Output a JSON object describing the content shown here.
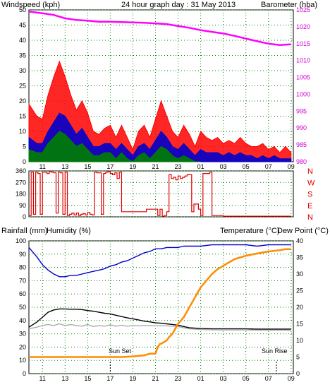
{
  "colors": {
    "wind_axis": "#e00000",
    "baro_axis": "#d000d0",
    "title": "#0000c0",
    "wind_max": "#ff0000",
    "wind_avg": "#0000cc",
    "wind_min": "#008000",
    "baro": "#ff00ff",
    "direction": "#dd0000",
    "rain": "#ff8c00",
    "humidity": "#0000cc",
    "temperature": "#000000",
    "dewpoint": "#aaaaaa",
    "rain_axis": "#e08000",
    "humidity_axis": "#0000cc",
    "dewpoint_axis": "#aaaaaa",
    "grid": "#008000"
  },
  "header": {
    "wind_label": "Windspeed (kph)",
    "title": "24 hour graph day : 31 May 2013",
    "baro_label": "Barometer (hba)"
  },
  "bottom_header": {
    "rain_label": "Rainfall (mm)",
    "humidity_label": "Humidity (%)",
    "temp_label": "Temperature (°C)",
    "dew_label": "Dew Point (°C)"
  },
  "direction_labels": [
    "N",
    "W",
    "S",
    "E",
    "N"
  ],
  "annotations": {
    "sunset": "Sun Set",
    "sunrise": "Sun Rise"
  },
  "chart_data": [
    {
      "type": "line",
      "title": "24 hour graph day : 31 May 2013",
      "x_ticks": [
        "11",
        "13",
        "15",
        "17",
        "19",
        "21",
        "23",
        "01",
        "03",
        "05",
        "07",
        "09"
      ],
      "y_left": {
        "label": "Windspeed (kph)",
        "ylim": [
          0,
          50
        ],
        "ticks": [
          0,
          5,
          10,
          15,
          20,
          25,
          30,
          35,
          40,
          45,
          50
        ]
      },
      "y_right": {
        "label": "Barometer (hba)",
        "ylim": [
          980,
          1025
        ],
        "ticks": [
          980,
          985,
          990,
          995,
          1000,
          1005,
          1010,
          1015,
          1020,
          1025
        ]
      },
      "series": [
        {
          "name": "Windspeed (kph)",
          "kind": "gust",
          "x": [
            9.8,
            10.5,
            11,
            11.5,
            12,
            12.5,
            13,
            13.5,
            14,
            14.5,
            15,
            15.5,
            16,
            16.5,
            17,
            17.5,
            18,
            18.5,
            19,
            19.5,
            20,
            20.5,
            21,
            21.5,
            22,
            22.5,
            23,
            23.5,
            24,
            24.5,
            25,
            25.5,
            26,
            26.5,
            27,
            27.5,
            28,
            28.5,
            29,
            29.5,
            30,
            30.5,
            31,
            31.5,
            32,
            32.5,
            33
          ],
          "values": [
            19,
            15,
            14,
            22,
            28,
            33,
            28,
            22,
            17,
            20,
            16,
            10,
            9,
            11,
            12,
            8,
            12,
            8,
            4,
            10,
            12,
            8,
            14,
            20,
            15,
            10,
            8,
            12,
            9,
            5,
            10,
            8,
            7,
            8,
            6,
            7,
            6,
            8,
            6,
            5,
            5,
            6,
            4,
            5,
            3,
            5,
            3
          ]
        },
        {
          "name": "Average",
          "kind": "average",
          "x": [
            9.8,
            10.5,
            11,
            11.5,
            12,
            12.5,
            13,
            13.5,
            14,
            14.5,
            15,
            15.5,
            16,
            16.5,
            17,
            17.5,
            18,
            18.5,
            19,
            19.5,
            20,
            20.5,
            21,
            21.5,
            22,
            22.5,
            23,
            23.5,
            24,
            24.5,
            25,
            25.5,
            26,
            26.5,
            27,
            27.5,
            28,
            28.5,
            29,
            29.5,
            30,
            30.5,
            31,
            31.5,
            32,
            32.5,
            33
          ],
          "values": [
            8,
            6,
            6,
            10,
            13,
            16,
            15,
            12,
            9,
            11,
            8,
            5,
            5,
            6,
            6,
            4,
            6,
            4,
            2,
            5,
            6,
            4,
            7,
            10,
            8,
            5,
            4,
            6,
            4,
            2,
            4,
            3,
            3,
            3,
            2,
            3,
            2,
            3,
            2,
            2,
            1,
            2,
            1,
            2,
            1,
            1,
            1
          ]
        },
        {
          "name": "Minimum",
          "kind": "lull",
          "x": [
            9.8,
            10.5,
            11,
            11.5,
            12,
            12.5,
            13,
            13.5,
            14,
            14.5,
            15,
            15.5,
            16,
            16.5,
            17,
            17.5,
            18,
            18.5,
            19,
            19.5,
            20,
            20.5,
            21,
            21.5,
            22,
            22.5,
            23,
            23.5,
            24,
            24.5,
            25
          ],
          "values": [
            4,
            3,
            3,
            6,
            8,
            10,
            9,
            7,
            5,
            6,
            4,
            2,
            2,
            3,
            3,
            1,
            3,
            1,
            0,
            2,
            3,
            1,
            3,
            5,
            4,
            2,
            1,
            2,
            1,
            0,
            0
          ]
        },
        {
          "name": "Barometer (hba)",
          "kind": "pressure",
          "axis": "right",
          "x": [
            9.8,
            11,
            12,
            13,
            14,
            15,
            16,
            17,
            18,
            19,
            20,
            21,
            22,
            23,
            24,
            25,
            26,
            27,
            28,
            29,
            30,
            31,
            32,
            33
          ],
          "values": [
            1024.5,
            1024,
            1023.5,
            1022.5,
            1022,
            1021.8,
            1021.5,
            1021.5,
            1021.4,
            1021.3,
            1021.2,
            1021,
            1020.8,
            1020.2,
            1019.7,
            1019,
            1018.5,
            1018,
            1017.3,
            1016.5,
            1015.7,
            1015,
            1014.6,
            1014.8
          ]
        }
      ]
    },
    {
      "type": "line",
      "title": "",
      "x_ticks": [
        "11",
        "13",
        "15",
        "17",
        "19",
        "21",
        "23",
        "01",
        "03",
        "05",
        "07",
        "09"
      ],
      "y_left": {
        "ylim": [
          0,
          360
        ],
        "ticks": [
          0,
          90,
          180,
          270,
          360
        ]
      },
      "y_right_labels": [
        "N",
        "W",
        "S",
        "E",
        "N"
      ],
      "series": [
        {
          "name": "Direction",
          "x": [
            9.8,
            10.0,
            10.2,
            10.4,
            10.6,
            10.8,
            11.0,
            11.2,
            11.4,
            11.6,
            11.8,
            12.0,
            12.2,
            12.4,
            12.6,
            12.8,
            13.0,
            13.2,
            13.4,
            13.6,
            13.8,
            14.0,
            14.2,
            14.4,
            14.6,
            14.8,
            15.0,
            15.2,
            15.4,
            15.6,
            15.8,
            16.0,
            16.2,
            16.4,
            16.6,
            16.8,
            17.0,
            17.2,
            17.4,
            17.6,
            17.8,
            18.0,
            19.0,
            20.0,
            20.2,
            21.0,
            21.2,
            21.4,
            21.6,
            21.8,
            22.0,
            22.2,
            22.4,
            22.6,
            22.8,
            23.0,
            23.2,
            23.4,
            23.6,
            23.8,
            24.0,
            24.2,
            24.4,
            24.6,
            24.8,
            25.0,
            25.2,
            25.4,
            25.6,
            25.8,
            26.0,
            27.0,
            28.0,
            29.0,
            30.0,
            31.0,
            32.0,
            33.0
          ],
          "values": [
            10,
            350,
            20,
            350,
            340,
            20,
            350,
            350,
            340,
            355,
            350,
            345,
            30,
            350,
            345,
            20,
            350,
            10,
            20,
            30,
            15,
            30,
            10,
            20,
            25,
            15,
            35,
            20,
            15,
            350,
            345,
            345,
            20,
            340,
            350,
            355,
            340,
            330,
            345,
            300,
            350,
            40,
            40,
            40,
            60,
            60,
            10,
            60,
            5,
            10,
            40,
            330,
            300,
            310,
            290,
            320,
            300,
            310,
            320,
            330,
            330,
            40,
            100,
            100,
            60,
            10,
            340,
            340,
            340,
            350,
            10,
            5,
            5,
            5,
            5,
            5,
            5,
            5
          ]
        }
      ]
    },
    {
      "type": "line",
      "title": "",
      "x_ticks": [
        "11",
        "13",
        "15",
        "17",
        "19",
        "21",
        "23",
        "01",
        "03",
        "05",
        "07",
        "09"
      ],
      "y_left": {
        "label": "Rainfall (mm) Humidity (%)",
        "ylim": [
          0,
          100
        ],
        "ticks": [
          0,
          10,
          20,
          30,
          40,
          50,
          60,
          70,
          80,
          90,
          100
        ]
      },
      "y_right": {
        "label": "Temperature (°C)",
        "ylim": [
          0,
          40
        ],
        "ticks": [
          0,
          5,
          10,
          15,
          20,
          25,
          30,
          35,
          40
        ]
      },
      "series": [
        {
          "name": "Humidity (%)",
          "axis": "left",
          "x": [
            9.8,
            10.5,
            11,
            11.5,
            12,
            12.5,
            13,
            13.5,
            14,
            14.5,
            15,
            15.5,
            16,
            16.5,
            17,
            17.5,
            18,
            18.5,
            19,
            19.5,
            20,
            20.5,
            21,
            21.5,
            22,
            22.5,
            23,
            23.5,
            24,
            25,
            26,
            27,
            28,
            29,
            30,
            31,
            32,
            33
          ],
          "values": [
            95,
            88,
            82,
            78,
            75,
            73,
            73,
            74,
            74,
            75,
            76,
            77,
            78,
            79,
            81,
            82,
            84,
            85,
            87,
            89,
            91,
            92,
            94,
            94,
            95,
            95,
            95,
            96,
            96,
            96,
            97,
            97,
            97,
            97,
            96,
            97,
            97,
            97
          ]
        },
        {
          "name": "Temperature (°C)",
          "axis": "right",
          "x": [
            9.8,
            10.5,
            11,
            11.5,
            12,
            12.5,
            13,
            13.5,
            14,
            14.5,
            15,
            15.5,
            16,
            16.5,
            17,
            17.5,
            18,
            18.5,
            19,
            19.5,
            20,
            20.5,
            21,
            21.5,
            22,
            22.5,
            23,
            23.5,
            24,
            25,
            26,
            27,
            28,
            29,
            30,
            31,
            32,
            33
          ],
          "values": [
            14,
            15.5,
            17,
            18.5,
            19.2,
            19.5,
            19.5,
            19.4,
            19.4,
            19.3,
            19,
            18.8,
            18.5,
            18.2,
            18,
            17.6,
            17.2,
            16.8,
            16.5,
            16.2,
            15.8,
            15.6,
            15.3,
            15.2,
            15,
            14.8,
            14.6,
            14.2,
            13.8,
            13.6,
            13.5,
            13.5,
            13.5,
            13.5,
            13.4,
            13.4,
            13.4,
            13.4
          ]
        },
        {
          "name": "Dew Point (°C)",
          "axis": "right",
          "x": [
            9.8,
            10.5,
            11,
            11.5,
            12,
            12.5,
            13,
            13.5,
            14,
            14.5,
            15,
            15.5,
            16,
            16.5,
            17,
            17.5,
            18,
            18.5,
            19,
            19.5,
            20,
            20.5,
            21,
            21.5,
            22,
            22.5,
            23,
            23.5,
            24,
            25,
            26,
            27,
            28,
            29,
            30,
            31,
            32,
            33
          ],
          "values": [
            13.5,
            14,
            14.5,
            14.8,
            14.5,
            15,
            14.5,
            14.8,
            14.5,
            14.3,
            14.8,
            14.2,
            14.5,
            14.3,
            14.7,
            14.3,
            14.6,
            14.3,
            14.5,
            14.4,
            14.5,
            14.5,
            14.4,
            14.4,
            14.4,
            14.3,
            14.2,
            13.8,
            13.5,
            13.3,
            13.2,
            13.2,
            13.2,
            13.2,
            13.1,
            13.1,
            13.1,
            13.1
          ]
        },
        {
          "name": "Rainfall (mm)",
          "axis": "right",
          "x": [
            9.8,
            11,
            12,
            13,
            14,
            15,
            16,
            17,
            18,
            19,
            20,
            20.5,
            21,
            21.2,
            21.4,
            21.5,
            22,
            22.2,
            22.5,
            23,
            23.5,
            24,
            24.5,
            25,
            25.5,
            26,
            26.5,
            27,
            27.5,
            28,
            28.5,
            29,
            30,
            31,
            32,
            32.5,
            33
          ],
          "values": [
            5,
            5,
            5,
            5,
            5,
            5,
            5,
            5,
            5,
            5.2,
            5.5,
            6,
            6,
            8,
            9,
            9,
            10,
            11,
            12,
            15,
            17,
            20,
            23,
            26,
            28,
            30,
            31.5,
            32.5,
            33.5,
            34.5,
            35,
            35.5,
            36.2,
            36.8,
            37.2,
            37.5,
            37.5
          ]
        }
      ],
      "annotations": [
        {
          "text": "Sun Set",
          "x": 17
        },
        {
          "text": "Sun Rise",
          "x": 31.7
        }
      ]
    }
  ]
}
